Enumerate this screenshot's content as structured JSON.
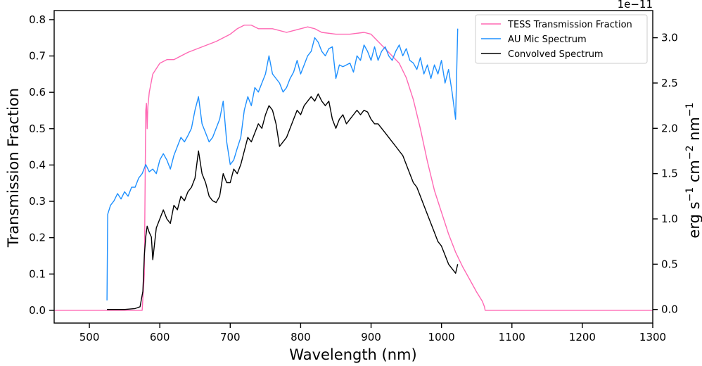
{
  "chart_data": {
    "type": "line",
    "xlabel": "Wavelength (nm)",
    "ylabel_left": "Transmission Fraction",
    "ylabel_right_parts": [
      "erg s",
      "−1",
      " cm",
      "−2",
      " nm",
      "−1"
    ],
    "right_offset_text": "1e−11",
    "xlim": [
      450,
      1300
    ],
    "ylim_left": [
      -0.035,
      0.825
    ],
    "ylim_right": [
      -0.15,
      3.3
    ],
    "x_ticks": [
      500,
      600,
      700,
      800,
      900,
      1000,
      1100,
      1200,
      1300
    ],
    "y_left_ticks": [
      0.0,
      0.1,
      0.2,
      0.3,
      0.4,
      0.5,
      0.6,
      0.7,
      0.8
    ],
    "y_right_ticks": [
      0.0,
      0.5,
      1.0,
      1.5,
      2.0,
      2.5,
      3.0
    ],
    "y_right_tick_labels": [
      "0.0",
      "0.5",
      "1.0",
      "1.5",
      "2.0",
      "2.5",
      "3.0"
    ],
    "legend_position": "top-right",
    "series": [
      {
        "name": "TESS Transmission Fraction",
        "axis": "left",
        "color": "#ff69b4",
        "x": [
          450,
          575,
          578,
          580,
          581,
          582,
          583,
          585,
          590,
          600,
          610,
          620,
          640,
          660,
          680,
          700,
          710,
          720,
          730,
          740,
          760,
          780,
          790,
          800,
          810,
          820,
          830,
          850,
          870,
          890,
          900,
          910,
          920,
          940,
          950,
          960,
          970,
          980,
          990,
          1000,
          1010,
          1020,
          1030,
          1040,
          1050,
          1058,
          1061,
          1062,
          1300
        ],
        "y": [
          0.0,
          0.0,
          0.1,
          0.55,
          0.57,
          0.5,
          0.56,
          0.6,
          0.65,
          0.68,
          0.69,
          0.69,
          0.71,
          0.725,
          0.74,
          0.76,
          0.775,
          0.785,
          0.785,
          0.775,
          0.775,
          0.765,
          0.77,
          0.775,
          0.78,
          0.775,
          0.765,
          0.76,
          0.76,
          0.765,
          0.76,
          0.74,
          0.72,
          0.68,
          0.64,
          0.58,
          0.5,
          0.41,
          0.33,
          0.27,
          0.21,
          0.16,
          0.12,
          0.085,
          0.05,
          0.025,
          0.01,
          0.0,
          0.0
        ]
      },
      {
        "name": "AU Mic Spectrum",
        "axis": "right",
        "color": "#1e90ff",
        "x": [
          525,
          526,
          530,
          535,
          540,
          545,
          550,
          555,
          560,
          565,
          570,
          575,
          580,
          585,
          590,
          595,
          600,
          605,
          610,
          615,
          620,
          625,
          630,
          635,
          640,
          645,
          650,
          655,
          660,
          665,
          670,
          675,
          680,
          685,
          690,
          695,
          700,
          705,
          710,
          715,
          720,
          725,
          730,
          735,
          740,
          745,
          750,
          755,
          760,
          765,
          770,
          775,
          780,
          785,
          790,
          795,
          800,
          805,
          810,
          815,
          820,
          825,
          830,
          835,
          840,
          845,
          850,
          855,
          860,
          865,
          870,
          875,
          880,
          885,
          890,
          895,
          900,
          905,
          910,
          915,
          920,
          925,
          930,
          935,
          940,
          945,
          950,
          955,
          960,
          965,
          970,
          975,
          980,
          985,
          990,
          995,
          1000,
          1005,
          1010,
          1015,
          1020,
          1023
        ],
        "y": [
          0.1,
          1.05,
          1.15,
          1.2,
          1.28,
          1.22,
          1.3,
          1.25,
          1.35,
          1.35,
          1.45,
          1.5,
          1.6,
          1.52,
          1.55,
          1.5,
          1.65,
          1.72,
          1.65,
          1.55,
          1.7,
          1.8,
          1.9,
          1.85,
          1.92,
          2.0,
          2.2,
          2.35,
          2.05,
          1.95,
          1.85,
          1.9,
          2.0,
          2.1,
          2.3,
          1.85,
          1.6,
          1.65,
          1.78,
          1.9,
          2.2,
          2.35,
          2.25,
          2.45,
          2.4,
          2.5,
          2.6,
          2.8,
          2.6,
          2.55,
          2.5,
          2.4,
          2.45,
          2.55,
          2.62,
          2.75,
          2.6,
          2.7,
          2.8,
          2.85,
          3.0,
          2.95,
          2.85,
          2.8,
          2.88,
          2.9,
          2.55,
          2.7,
          2.68,
          2.7,
          2.72,
          2.62,
          2.8,
          2.75,
          2.92,
          2.85,
          2.75,
          2.9,
          2.75,
          2.85,
          2.9,
          2.8,
          2.75,
          2.85,
          2.92,
          2.8,
          2.88,
          2.75,
          2.72,
          2.65,
          2.78,
          2.6,
          2.7,
          2.55,
          2.7,
          2.6,
          2.75,
          2.5,
          2.65,
          2.4,
          2.1,
          3.1
        ]
      },
      {
        "name": "Convolved Spectrum",
        "axis": "right",
        "color": "#000000",
        "x": [
          525,
          550,
          565,
          572,
          576,
          578,
          580,
          582,
          585,
          588,
          590,
          595,
          600,
          605,
          610,
          615,
          620,
          625,
          630,
          635,
          640,
          645,
          650,
          655,
          660,
          665,
          670,
          675,
          680,
          685,
          690,
          695,
          700,
          705,
          710,
          715,
          720,
          725,
          730,
          735,
          740,
          745,
          750,
          755,
          760,
          765,
          770,
          775,
          780,
          785,
          790,
          795,
          800,
          805,
          810,
          815,
          820,
          825,
          830,
          835,
          840,
          845,
          850,
          855,
          860,
          865,
          870,
          875,
          880,
          885,
          890,
          895,
          900,
          905,
          910,
          915,
          920,
          925,
          930,
          935,
          940,
          945,
          950,
          955,
          960,
          965,
          970,
          975,
          980,
          985,
          990,
          995,
          1000,
          1005,
          1010,
          1015,
          1020,
          1023
        ],
        "y": [
          0.0,
          0.0,
          0.01,
          0.03,
          0.2,
          0.6,
          0.8,
          0.92,
          0.85,
          0.8,
          0.55,
          0.9,
          1.0,
          1.1,
          1.0,
          0.95,
          1.15,
          1.1,
          1.25,
          1.2,
          1.3,
          1.35,
          1.45,
          1.75,
          1.5,
          1.4,
          1.25,
          1.2,
          1.18,
          1.25,
          1.5,
          1.4,
          1.4,
          1.55,
          1.5,
          1.6,
          1.75,
          1.9,
          1.85,
          1.95,
          2.05,
          2.0,
          2.15,
          2.25,
          2.2,
          2.05,
          1.8,
          1.85,
          1.9,
          2.0,
          2.1,
          2.2,
          2.15,
          2.25,
          2.3,
          2.35,
          2.3,
          2.38,
          2.3,
          2.25,
          2.3,
          2.1,
          2.0,
          2.1,
          2.15,
          2.05,
          2.1,
          2.15,
          2.2,
          2.15,
          2.2,
          2.18,
          2.1,
          2.05,
          2.05,
          2.0,
          1.95,
          1.9,
          1.85,
          1.8,
          1.75,
          1.7,
          1.6,
          1.5,
          1.4,
          1.35,
          1.25,
          1.15,
          1.05,
          0.95,
          0.85,
          0.75,
          0.7,
          0.6,
          0.5,
          0.45,
          0.4,
          0.5
        ]
      }
    ]
  }
}
